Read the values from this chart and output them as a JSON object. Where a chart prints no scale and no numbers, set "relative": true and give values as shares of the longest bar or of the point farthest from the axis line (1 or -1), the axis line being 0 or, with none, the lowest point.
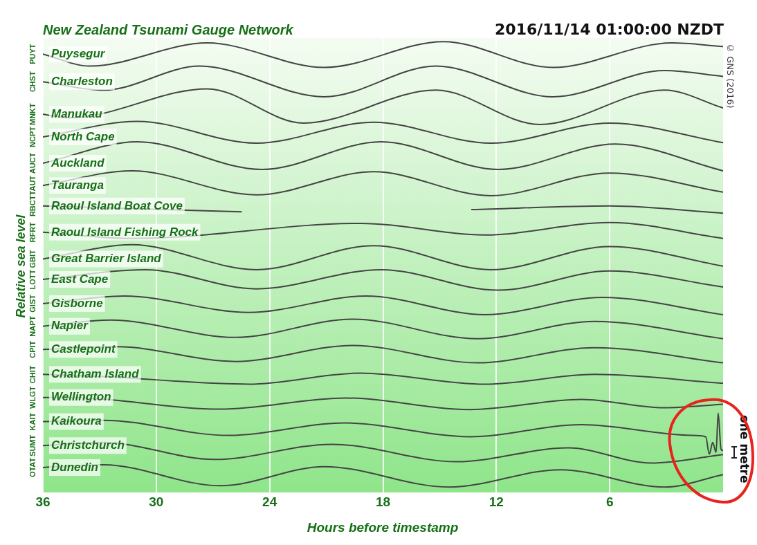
{
  "chart_data": {
    "type": "line",
    "title": "New Zealand Tsunami Gauge Network",
    "subtitle": "2016/11/14 01:00:00 NZDT",
    "xlabel": "Hours before timestamp",
    "ylabel": "Relative sea level",
    "relative": true,
    "annotations": [
      "© GNS (2016)",
      "one metre",
      "PUYT",
      "CHST",
      "MNKT",
      "NCPT",
      "AUCT",
      "TAUT",
      "RBCT",
      "RFRT",
      "GBIT",
      "LOTT",
      "GIST",
      "NAPT",
      "CPIT",
      "CHIT",
      "WLGT",
      "KAIT",
      "SUMT",
      "OTAT"
    ],
    "xlim": [
      36,
      0
    ],
    "xticks": [
      36,
      30,
      24,
      18,
      12,
      6
    ],
    "grid": "x",
    "legend": false,
    "marker": "none",
    "line_style": "solid",
    "series": [
      {
        "name": "Puysegur",
        "color": "#444444",
        "x": [
          36,
          33.5,
          27.3,
          21.1,
          14.8,
          9.0,
          2.7,
          0
        ],
        "values": [
          0.972,
          0.945,
          0.997,
          0.942,
          1.0,
          0.942,
          0.997,
          0.989
        ]
      },
      {
        "name": "Charleston",
        "color": "#444444",
        "x": [
          36,
          32.8,
          27.7,
          21.1,
          15.2,
          9.0,
          3.1,
          0
        ],
        "values": [
          0.91,
          0.891,
          0.945,
          0.876,
          0.945,
          0.876,
          0.935,
          0.922
        ]
      },
      {
        "name": "Manukau",
        "color": "#444444",
        "x": [
          36,
          34.6,
          27.3,
          22.2,
          15.2,
          9.7,
          3.1,
          0
        ],
        "values": [
          0.837,
          0.829,
          0.894,
          0.817,
          0.891,
          0.814,
          0.891,
          0.851
        ]
      },
      {
        "name": "North Cape",
        "color": "#444444",
        "x": [
          36,
          31.0,
          24.7,
          18.5,
          12.3,
          6.0,
          0
        ],
        "values": [
          0.786,
          0.821,
          0.772,
          0.819,
          0.772,
          0.817,
          0.773
        ]
      },
      {
        "name": "Auckland",
        "color": "#444444",
        "x": [
          36,
          31.0,
          24.4,
          18.1,
          11.9,
          5.7,
          0
        ],
        "values": [
          0.727,
          0.775,
          0.713,
          0.775,
          0.713,
          0.77,
          0.71
        ]
      },
      {
        "name": "Tauranga",
        "color": "#444444",
        "x": [
          36,
          31.3,
          24.7,
          18.5,
          12.3,
          6.0,
          0
        ],
        "values": [
          0.677,
          0.71,
          0.656,
          0.708,
          0.654,
          0.705,
          0.662
        ]
      },
      {
        "name": "Raoul Island Boat Cove",
        "color": "#444444",
        "x": [
          36,
          25.5,
          19,
          13.3,
          6.0,
          0
        ],
        "values": [
          0.631,
          0.618,
          null,
          0.623,
          0.631,
          0.615
        ]
      },
      {
        "name": "Raoul Island Fishing Rock",
        "color": "#444444",
        "x": [
          36,
          31.3,
          19.2,
          12.6,
          6.0,
          0
        ],
        "values": [
          0.572,
          0.558,
          0.592,
          0.566,
          0.594,
          0.558
        ]
      },
      {
        "name": "Great Barrier Island",
        "color": "#444444",
        "x": [
          36,
          31.3,
          24.7,
          18.5,
          12.3,
          6.0,
          0
        ],
        "values": [
          0.512,
          0.544,
          0.488,
          0.542,
          0.488,
          0.54,
          0.496
        ]
      },
      {
        "name": "East Cape",
        "color": "#444444",
        "x": [
          36,
          30.6,
          24.7,
          18.1,
          11.9,
          6.0,
          0
        ],
        "values": [
          0.466,
          0.488,
          0.445,
          0.488,
          0.442,
          0.485,
          0.449
        ]
      },
      {
        "name": "Gisborne",
        "color": "#444444",
        "x": [
          36,
          31.7,
          25.1,
          18.9,
          12.6,
          6.4,
          0
        ],
        "values": [
          0.412,
          0.429,
          0.392,
          0.429,
          0.387,
          0.426,
          0.387
        ]
      },
      {
        "name": "Napier",
        "color": "#444444",
        "x": [
          36,
          32.4,
          25.8,
          19.6,
          13.0,
          6.8,
          0
        ],
        "values": [
          0.361,
          0.375,
          0.336,
          0.377,
          0.333,
          0.372,
          0.333
        ]
      },
      {
        "name": "Castlepoint",
        "color": "#444444",
        "x": [
          36,
          32.1,
          25.8,
          19.6,
          13.0,
          6.8,
          0
        ],
        "values": [
          0.309,
          0.315,
          0.282,
          0.318,
          0.279,
          0.313,
          0.279
        ]
      },
      {
        "name": "Chatham Island",
        "color": "#444444",
        "x": [
          36,
          32.8,
          25.1,
          19.2,
          12.6,
          6.8,
          0
        ],
        "values": [
          0.253,
          0.248,
          0.231,
          0.256,
          0.231,
          0.253,
          0.233
        ]
      },
      {
        "name": "Wellington",
        "color": "#444444",
        "x": [
          36,
          34.6,
          26.6,
          20.0,
          13.4,
          7.5,
          3.1,
          0
        ],
        "values": [
          0.201,
          0.201,
          0.175,
          0.2,
          0.174,
          0.197,
          0.178,
          0.186
        ]
      },
      {
        "name": "Kaikoura",
        "color": "#444444",
        "x": [
          36,
          32.8,
          26.2,
          20.0,
          13.4,
          7.5,
          1.65,
          0.92,
          0.73,
          0.55,
          0.37,
          0.26,
          0.11,
          0
        ],
        "values": [
          0.147,
          0.15,
          0.116,
          0.144,
          0.113,
          0.14,
          0.116,
          0.113,
          0.074,
          0.1,
          0.078,
          0.166,
          0.085,
          0.082
        ]
      },
      {
        "name": "Christchurch",
        "color": "#444444",
        "x": [
          36,
          32.8,
          26.9,
          20.7,
          14.1,
          8.2,
          3.8,
          0
        ],
        "values": [
          0.093,
          0.1,
          0.062,
          0.096,
          0.057,
          0.088,
          0.054,
          0.073
        ]
      },
      {
        "name": "Dunedin",
        "color": "#444444",
        "x": [
          36,
          32.8,
          26.6,
          21.1,
          14.5,
          8.6,
          3.1,
          0
        ],
        "values": [
          0.044,
          0.05,
          0.003,
          0.046,
          0.0,
          0.039,
          0.0,
          0.028
        ]
      }
    ]
  }
}
